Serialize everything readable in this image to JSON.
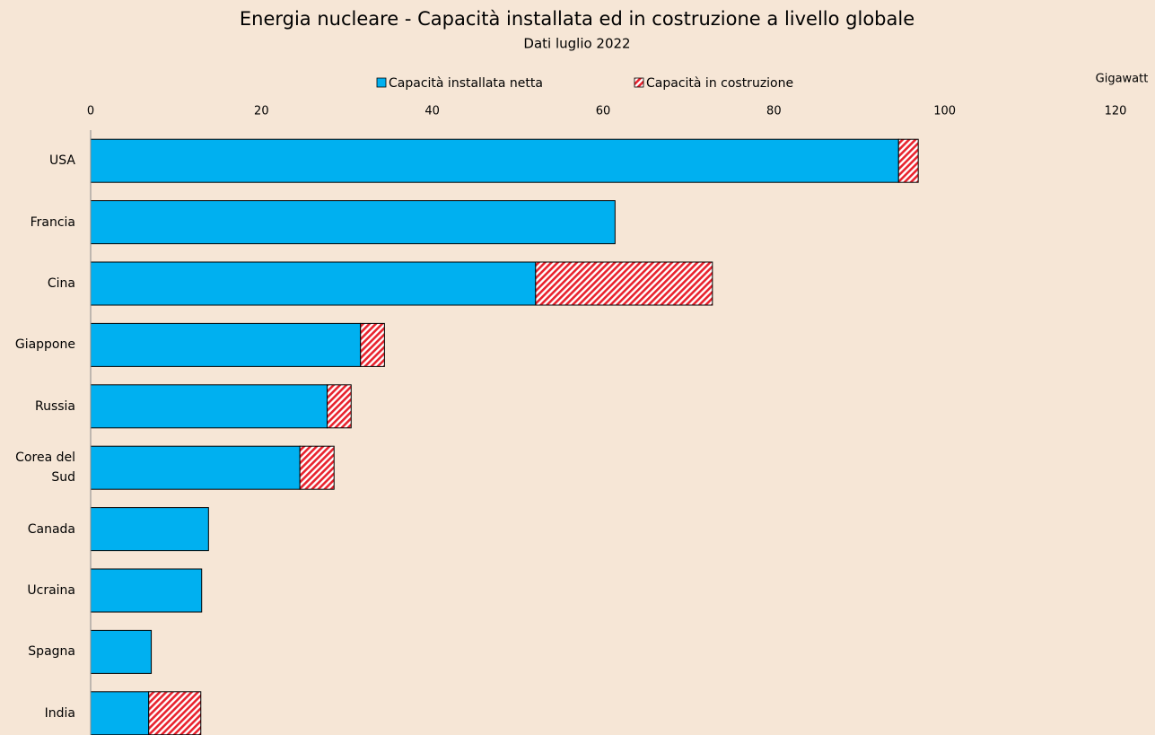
{
  "chart_data": {
    "type": "bar",
    "orientation": "horizontal",
    "stacked": true,
    "title": "Energia nucleare - Capacità installata ed in costruzione a livello globale",
    "subtitle": "Dati luglio 2022",
    "x_label": "Gigawatt",
    "categories": [
      "USA",
      "Francia",
      "Cina",
      "Giappone",
      "Russia",
      "Corea del Sud",
      "Canada",
      "Ucraina",
      "Spagna",
      "India"
    ],
    "series": [
      {
        "name": "Capacità installata netta",
        "color": "#00b0f0",
        "values": [
          94.6,
          61.4,
          52.1,
          31.6,
          27.7,
          24.5,
          13.8,
          13.0,
          7.1,
          6.8
        ]
      },
      {
        "name": "Capacità in costruzione",
        "color": "#e8222d",
        "pattern": "hatch",
        "values": [
          2.3,
          null,
          20.7,
          2.8,
          2.8,
          4.0,
          null,
          null,
          null,
          6.1
        ]
      }
    ],
    "xlim": [
      0,
      120
    ],
    "xticks": [
      0,
      20,
      40,
      60,
      80,
      100,
      120
    ],
    "grid": false,
    "legend": "top"
  }
}
